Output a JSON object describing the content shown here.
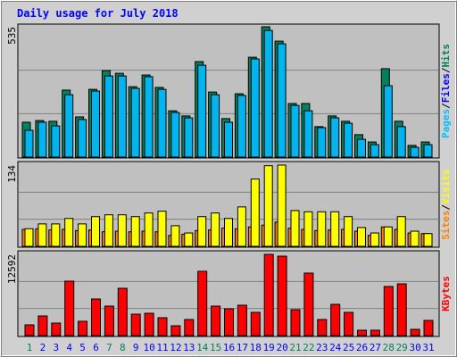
{
  "chart_data": {
    "type": "bar",
    "title": "Daily usage for July 2018",
    "categories": [
      "1",
      "2",
      "3",
      "4",
      "5",
      "6",
      "7",
      "8",
      "9",
      "10",
      "11",
      "12",
      "13",
      "14",
      "15",
      "16",
      "17",
      "18",
      "19",
      "20",
      "21",
      "22",
      "23",
      "24",
      "25",
      "26",
      "27",
      "28",
      "29",
      "30",
      "31"
    ],
    "category_colors": [
      "#00805c",
      "#0000ff",
      "#0000ff",
      "#0000ff",
      "#0000ff",
      "#0000ff",
      "#00805c",
      "#00805c",
      "#0000ff",
      "#0000ff",
      "#0000ff",
      "#0000ff",
      "#0000ff",
      "#00805c",
      "#00805c",
      "#0000ff",
      "#0000ff",
      "#0000ff",
      "#0000ff",
      "#0000ff",
      "#00805c",
      "#00805c",
      "#0000ff",
      "#0000ff",
      "#0000ff",
      "#0000ff",
      "#0000ff",
      "#00805c",
      "#00805c",
      "#0000ff",
      "#0000ff"
    ],
    "separator": "/",
    "panels": [
      {
        "ylim": [
          0,
          535
        ],
        "yticks": [
          535
        ],
        "grid_divisions": 3,
        "side_labels": [
          {
            "text": "Pages",
            "color": "#00c0ff"
          },
          {
            "text": "Files",
            "color": "#0000ff"
          },
          {
            "text": "Hits",
            "color": "#00805c"
          }
        ],
        "series": [
          {
            "name": "Hits",
            "color": "#00805c",
            "values": [
              143,
              150,
              147,
              275,
              165,
              278,
              355,
              344,
              289,
              337,
              286,
              190,
              169,
              392,
              267,
              158,
              260,
              410,
              535,
              476,
              220,
              220,
              125,
              169,
              147,
              92,
              62,
              363,
              147,
              48,
              62
            ]
          },
          {
            "name": "Files",
            "color": "#00b4f0",
            "values": [
              110,
              143,
              128,
              256,
              154,
              271,
              333,
              333,
              282,
              330,
              278,
              183,
              161,
              377,
              256,
              143,
              253,
              403,
              520,
              465,
              212,
              190,
              121,
              161,
              139,
              73,
              51,
              293,
              125,
              40,
              51
            ]
          }
        ]
      },
      {
        "ylim": [
          0,
          134
        ],
        "yticks": [
          134
        ],
        "grid_divisions": 3,
        "side_labels": [
          {
            "text": "Sites",
            "color": "#ff8000"
          },
          {
            "text": "Visits",
            "color": "#ffff00"
          }
        ],
        "series": [
          {
            "name": "Sites",
            "color": "#ff8000",
            "values": [
              28,
              29,
              27,
              28,
              26,
              27,
              24,
              25,
              24,
              25,
              24,
              18,
              20,
              26,
              27,
              30,
              29,
              32,
              35,
              40,
              30,
              28,
              26,
              27,
              28,
              25,
              18,
              32,
              28,
              22,
              21
            ]
          },
          {
            "name": "Visits",
            "color": "#ffff00",
            "values": [
              29,
              37,
              37,
              46,
              37,
              49,
              52,
              52,
              49,
              55,
              58,
              34,
              22,
              49,
              55,
              46,
              65,
              111,
              133,
              134,
              59,
              57,
              57,
              57,
              49,
              31,
              22,
              32,
              49,
              25,
              21
            ]
          }
        ]
      },
      {
        "ylim": [
          0,
          12592
        ],
        "yticks": [
          12592
        ],
        "grid_divisions": 3,
        "side_labels": [
          {
            "text": "KBytes",
            "color": "#ff0000"
          }
        ],
        "series": [
          {
            "name": "KBytes",
            "color": "#ff0000",
            "values": [
              1660,
              3044,
              1937,
              8440,
              2214,
              5673,
              4566,
              7334,
              3321,
              3459,
              2767,
              1522,
              2490,
              9963,
              4566,
              4151,
              4705,
              3598,
              12592,
              12315,
              4013,
              9686,
              2490,
              4843,
              3598,
              830,
              830,
              7611,
              8025,
              969,
              2352
            ]
          }
        ]
      }
    ]
  }
}
